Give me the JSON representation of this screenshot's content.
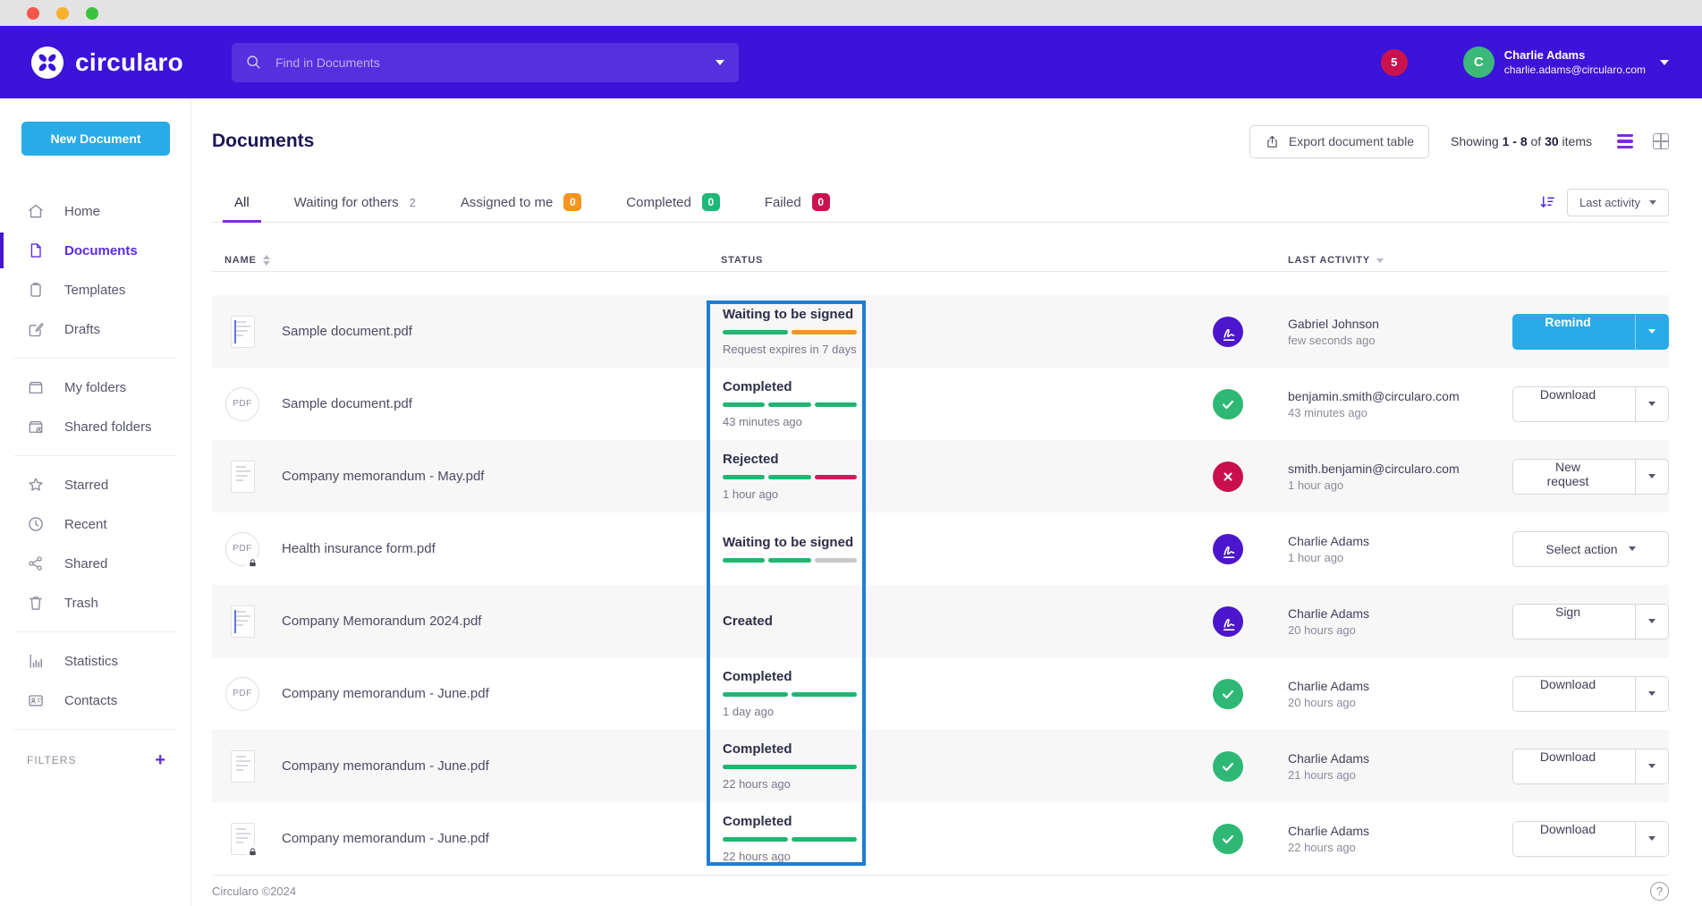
{
  "header": {
    "brand": "circularo",
    "search": {
      "placeholder": "Find in Documents"
    },
    "notifications_count": "5",
    "user": {
      "initial": "C",
      "name": "Charlie Adams",
      "email": "charlie.adams@circularo.com"
    }
  },
  "sidebar": {
    "new_document_label": "New Document",
    "items": [
      {
        "label": "Home",
        "icon": "home"
      },
      {
        "label": "Documents",
        "icon": "document",
        "active": true
      },
      {
        "label": "Templates",
        "icon": "template"
      },
      {
        "label": "Drafts",
        "icon": "draft"
      },
      {
        "label": "My folders",
        "icon": "folder"
      },
      {
        "label": "Shared folders",
        "icon": "shared-folder"
      },
      {
        "label": "Starred",
        "icon": "star"
      },
      {
        "label": "Recent",
        "icon": "clock"
      },
      {
        "label": "Shared",
        "icon": "share"
      },
      {
        "label": "Trash",
        "icon": "trash"
      },
      {
        "label": "Statistics",
        "icon": "statistics"
      },
      {
        "label": "Contacts",
        "icon": "contacts"
      }
    ],
    "filters_label": "FILTERS"
  },
  "toolbar": {
    "page_title": "Documents",
    "export_label": "Export document table",
    "showing": {
      "prefix": "Showing",
      "range": "1 - 8",
      "middle": "of",
      "total": "30",
      "suffix": "items"
    }
  },
  "tabs": [
    {
      "label": "All",
      "active": true
    },
    {
      "label": "Waiting for others",
      "count": "2"
    },
    {
      "label": "Assigned to me",
      "count": "0",
      "badge": "orange"
    },
    {
      "label": "Completed",
      "count": "0",
      "badge": "green"
    },
    {
      "label": "Failed",
      "count": "0",
      "badge": "red"
    }
  ],
  "sort": {
    "label": "Last activity"
  },
  "table": {
    "headers": {
      "name": "NAME",
      "status": "STATUS",
      "last_activity": "LAST ACTIVITY"
    },
    "pdf_label": "PDF",
    "rows": [
      {
        "name": "Sample document.pdf",
        "status": "Waiting to be signed",
        "status_note": "Request expires in 7 days",
        "segments": [
          "green",
          "orange"
        ],
        "actor": "Gabriel Johnson",
        "time": "few seconds ago",
        "action": "Remind"
      },
      {
        "name": "Sample document.pdf",
        "status": "Completed",
        "status_note": "43 minutes ago",
        "segments": [
          "green",
          "green",
          "green"
        ],
        "actor": "benjamin.smith@circularo.com",
        "time": "43 minutes ago",
        "action": "Download"
      },
      {
        "name": "Company memorandum - May.pdf",
        "status": "Rejected",
        "status_note": "1 hour ago",
        "segments": [
          "green",
          "green",
          "red"
        ],
        "actor": "smith.benjamin@circularo.com",
        "time": "1 hour ago",
        "action": "New request"
      },
      {
        "name": "Health insurance form.pdf",
        "status": "Waiting to be signed",
        "status_note": "",
        "segments": [
          "green",
          "green",
          "gray"
        ],
        "actor": "Charlie Adams",
        "time": "1 hour ago",
        "action": "Select action"
      },
      {
        "name": "Company Memorandum 2024.pdf",
        "status": "Created",
        "status_note": "",
        "segments": [],
        "actor": "Charlie Adams",
        "time": "20 hours ago",
        "action": "Sign"
      },
      {
        "name": "Company memorandum - June.pdf",
        "status": "Completed",
        "status_note": "1 day ago",
        "segments": [
          "green",
          "green"
        ],
        "actor": "Charlie Adams",
        "time": "20 hours ago",
        "action": "Download"
      },
      {
        "name": "Company memorandum - June.pdf",
        "status": "Completed",
        "status_note": "22 hours ago",
        "segments": [
          "green"
        ],
        "actor": "Charlie Adams",
        "time": "21 hours ago",
        "action": "Download"
      },
      {
        "name": "Company memorandum - June.pdf",
        "status": "Completed",
        "status_note": "22 hours ago",
        "segments": [
          "green",
          "green"
        ],
        "actor": "Charlie Adams",
        "time": "22 hours ago",
        "action": "Download"
      }
    ]
  },
  "footer": {
    "copyright": "Circularo ©2024",
    "help_glyph": "?"
  },
  "colors": {
    "header_purple": "#3b13d9",
    "accent_blue": "#29abe8",
    "highlight_box": "#1d7ed3",
    "progress_green": "#21b573",
    "progress_orange": "#f7941e",
    "progress_red": "#c81e5b",
    "progress_gray": "#c7c7cc",
    "badge_orange": "#f7941e",
    "badge_green": "#1db877",
    "badge_red": "#c9134f",
    "avatar_purple": "#4b16cc",
    "avatar_green": "#2eb873",
    "avatar_red": "#c8104e",
    "active_nav": "#5a2be0",
    "tab_underline": "#7b2be0"
  }
}
